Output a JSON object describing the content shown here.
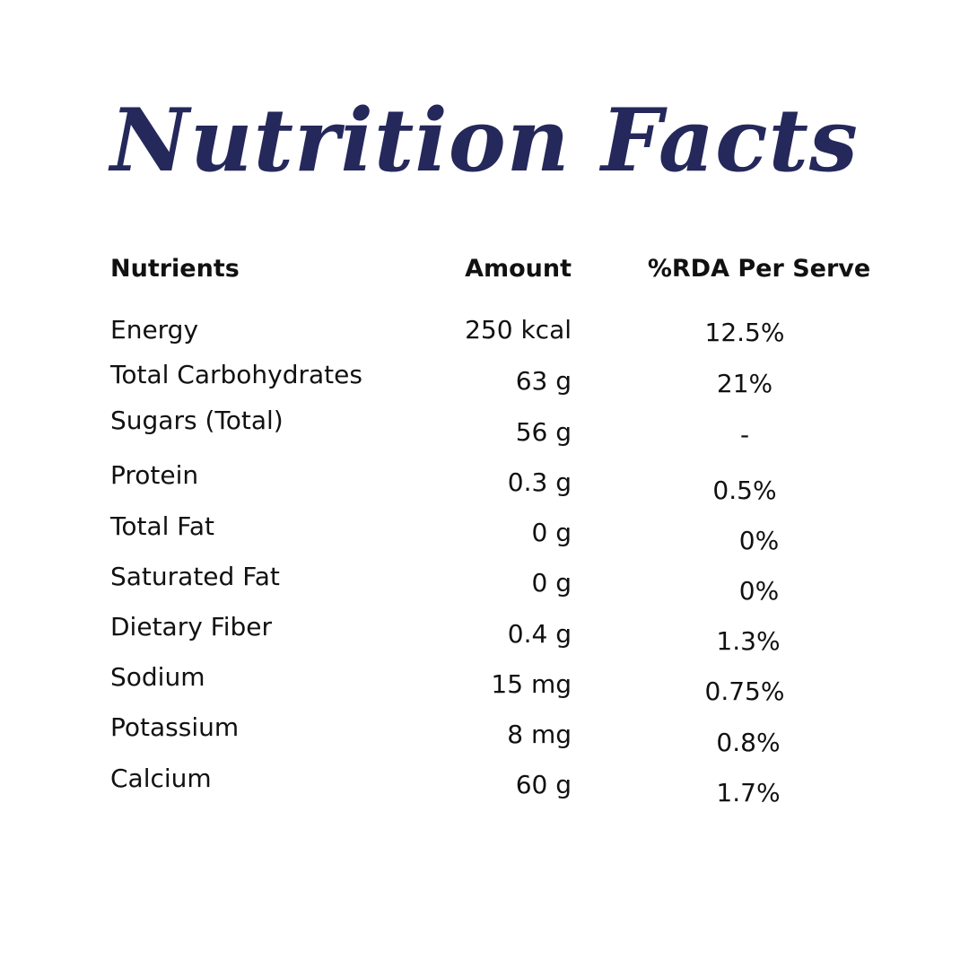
{
  "title": "Nutrition Facts",
  "headers": {
    "nutrients": "Nutrients",
    "amount": "Amount",
    "rda": "%RDA Per Serve"
  },
  "rows": [
    {
      "nutrient": "Energy",
      "amount": "250 kcal",
      "rda": "12.5%"
    },
    {
      "nutrient": "Total Carbohydrates",
      "amount": "63 g",
      "rda": "21%"
    },
    {
      "nutrient": "Sugars (Total)",
      "amount": "56 g",
      "rda": "-"
    },
    {
      "nutrient": "Protein",
      "amount": "0.3 g",
      "rda": "0.5%"
    },
    {
      "nutrient": "Total Fat",
      "amount": "0 g",
      "rda": "0%"
    },
    {
      "nutrient": "Saturated Fat",
      "amount": "0 g",
      "rda": "0%"
    },
    {
      "nutrient": "Dietary Fiber",
      "amount": "0.4 g",
      "rda": "1.3%"
    },
    {
      "nutrient": "Sodium",
      "amount": "15 mg",
      "rda": "0.75%"
    },
    {
      "nutrient": "Potassium",
      "amount": "8 mg",
      "rda": "0.8%"
    },
    {
      "nutrient": "Calcium",
      "amount": "60 g",
      "rda": "1.7%"
    }
  ],
  "colors": {
    "title": "#25285a",
    "text": "#111111",
    "background": "#ffffff"
  }
}
